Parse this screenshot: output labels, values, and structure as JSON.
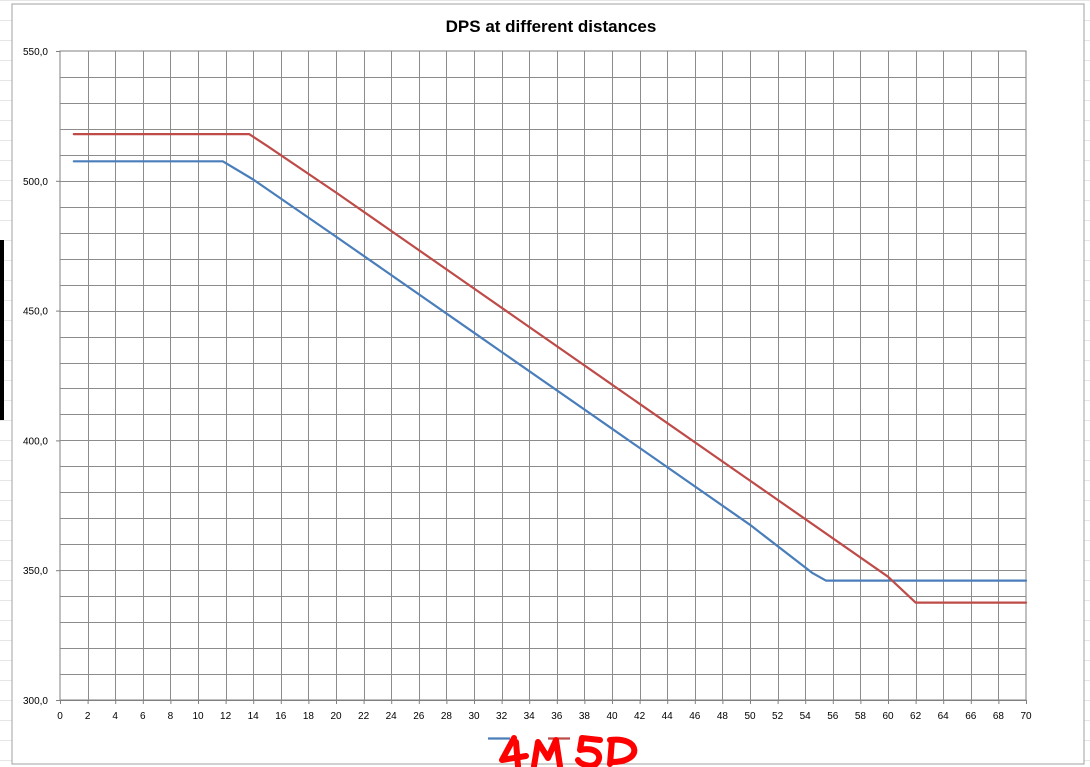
{
  "chart_data": {
    "type": "line",
    "title": "DPS at different distances",
    "xlabel": "",
    "ylabel": "",
    "xlim": [
      0,
      70
    ],
    "ylim": [
      300,
      550
    ],
    "x_ticks": [
      "0",
      "2",
      "4",
      "6",
      "8",
      "10",
      "12",
      "14",
      "16",
      "18",
      "20",
      "22",
      "24",
      "26",
      "28",
      "30",
      "32",
      "34",
      "36",
      "38",
      "40",
      "42",
      "44",
      "46",
      "48",
      "50",
      "52",
      "54",
      "56",
      "58",
      "60",
      "62",
      "64",
      "66",
      "68",
      "70"
    ],
    "y_ticks": [
      "300,0",
      "350,0",
      "400,0",
      "450,0",
      "500,0",
      "550,0"
    ],
    "grid": true,
    "legend_position": "bottom",
    "series": [
      {
        "color": "#4a7ebb",
        "x": [
          1,
          11.8,
          14,
          20,
          30,
          40,
          50,
          54.5,
          55.5,
          70
        ],
        "y": [
          507.5,
          507.5,
          500.5,
          478.5,
          441.5,
          404.5,
          367.5,
          349,
          346,
          346
        ]
      },
      {
        "color": "#be4b48",
        "x": [
          1,
          13.7,
          15,
          20,
          30,
          40,
          50,
          60,
          62,
          63,
          70
        ],
        "y": [
          518,
          518,
          513.5,
          495.5,
          458.5,
          421.5,
          384.5,
          347.5,
          337.5,
          337.5,
          337.5
        ]
      }
    ],
    "legend": [
      {
        "color": "#4a7ebb"
      },
      {
        "color": "#be4b48"
      }
    ],
    "annotation": "4M 5D",
    "annotation_color": "#ff0000"
  }
}
